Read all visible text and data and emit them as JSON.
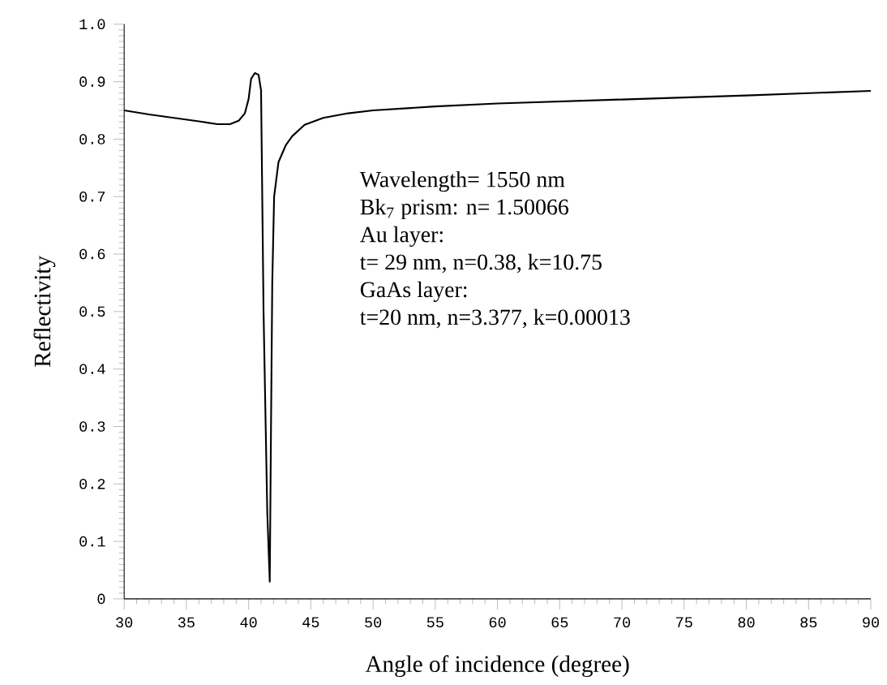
{
  "chart_data": {
    "type": "line",
    "xlabel": "Angle of incidence (degree)",
    "ylabel": "Reflectivity",
    "x": [
      30,
      32,
      34,
      36,
      37.5,
      38.5,
      39.2,
      39.7,
      40.0,
      40.2,
      40.5,
      40.8,
      41.0,
      41.2,
      41.5,
      41.7,
      41.8,
      41.9,
      42.05,
      42.4,
      43,
      43.5,
      44.5,
      46,
      48,
      50,
      55,
      60,
      70,
      80,
      90
    ],
    "series": [
      {
        "color": "#000000",
        "values": [
          0.85,
          0.843,
          0.837,
          0.831,
          0.826,
          0.826,
          0.832,
          0.845,
          0.87,
          0.905,
          0.915,
          0.912,
          0.885,
          0.5,
          0.15,
          0.03,
          0.3,
          0.55,
          0.7,
          0.76,
          0.79,
          0.805,
          0.825,
          0.837,
          0.845,
          0.85,
          0.857,
          0.862,
          0.869,
          0.876,
          0.884
        ]
      }
    ],
    "xlim": [
      30,
      90
    ],
    "ylim": [
      0,
      1.0
    ],
    "xticks": [
      30,
      35,
      40,
      45,
      50,
      55,
      60,
      65,
      70,
      75,
      80,
      85,
      90
    ],
    "yticks": [
      0,
      {
        "value": 0.1,
        "label": "0.1"
      },
      {
        "value": 0.2,
        "label": "0.2"
      },
      {
        "value": 0.3,
        "label": "0.3"
      },
      {
        "value": 0.4,
        "label": "0.4"
      },
      {
        "value": 0.5,
        "label": "0.5"
      },
      {
        "value": 0.6,
        "label": "0.6"
      },
      {
        "value": 0.7,
        "label": "0.7"
      },
      {
        "value": 0.8,
        "label": "0.8"
      },
      {
        "value": 0.9,
        "label": "0.9"
      },
      {
        "value": 1.0,
        "label": "1.0"
      }
    ],
    "annotations": [
      "Wavelength= 1550 nm",
      "Bk$_{7}$ prism: n= 1.50066",
      "Au layer:",
      "t= 29 nm, n=0.38, k=10.75",
      "GaAs layer:",
      "t=20 nm, n=3.377, k=0.00013"
    ],
    "grid": false,
    "marker": "none",
    "line_style": "solid"
  }
}
